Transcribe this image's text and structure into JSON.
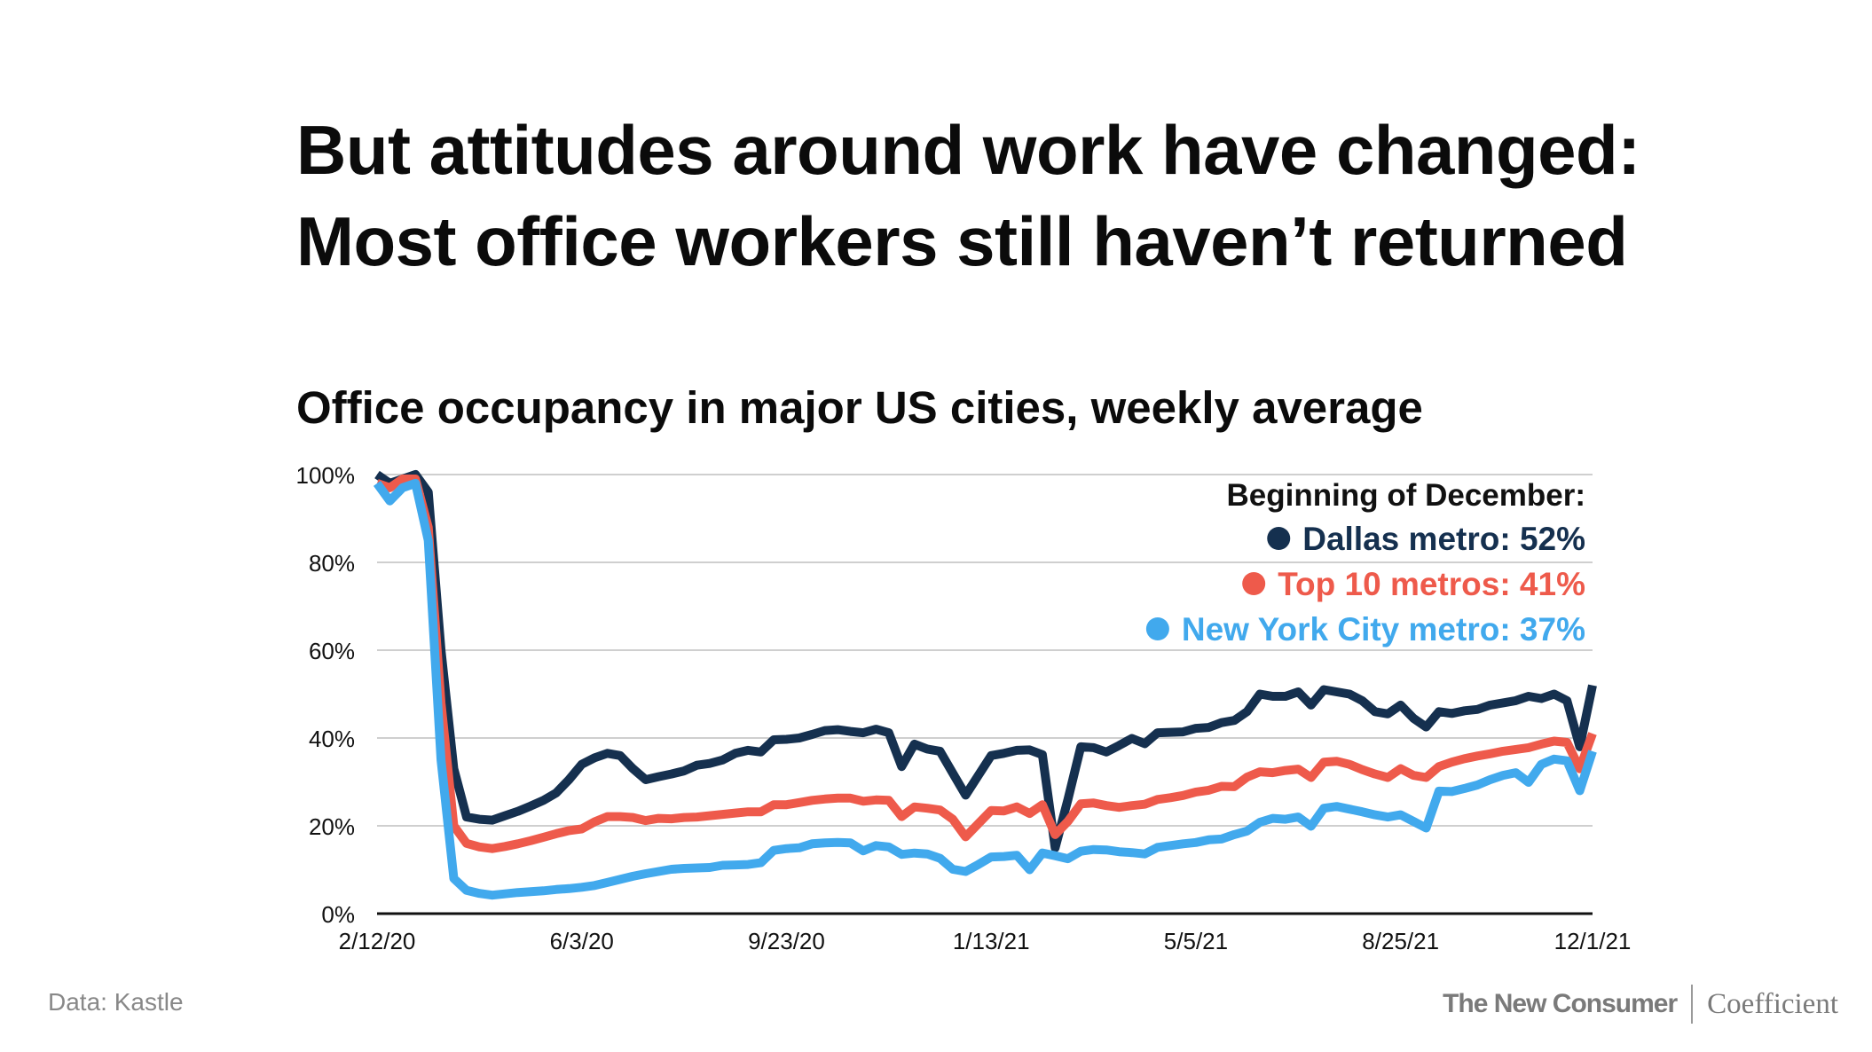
{
  "slide": {
    "title_line1": "But attitudes around work have changed:",
    "title_line2": "Most office workers still haven’t returned",
    "source": "Data: Kastle",
    "brand_primary": "The New Consumer",
    "brand_secondary": "Coefficient"
  },
  "chart_data": {
    "type": "line",
    "title": "Office occupancy in major US cities, weekly average",
    "xlabel": "",
    "ylabel": "",
    "ylim": [
      0,
      100
    ],
    "yticks": [
      "0%",
      "20%",
      "40%",
      "60%",
      "80%",
      "100%"
    ],
    "ytick_values": [
      0,
      20,
      40,
      60,
      80,
      100
    ],
    "xtick_labels": [
      "2/12/20",
      "6/3/20",
      "9/23/20",
      "1/13/21",
      "5/5/21",
      "8/25/21",
      "12/1/21"
    ],
    "xtick_index": [
      0,
      16,
      32,
      48,
      64,
      80,
      95
    ],
    "grid": true,
    "legend": {
      "heading": "Beginning of December:",
      "placement": "top-right",
      "entries": [
        "Dallas metro: 52%",
        "Top 10 metros: 41%",
        "New York City metro: 37%"
      ]
    },
    "series": [
      {
        "name": "Dallas metro",
        "color": "#15304f",
        "values": [
          100,
          98,
          99,
          100,
          96,
          60,
          33,
          22,
          21.5,
          21.3,
          22.3,
          23.3,
          24.5,
          25.8,
          27.5,
          30.5,
          34,
          35.5,
          36.5,
          36,
          33,
          30.5,
          31.2,
          31.8,
          32.5,
          33.8,
          34.2,
          35,
          36.5,
          37.2,
          36.8,
          39.6,
          39.7,
          40,
          40.8,
          41.7,
          41.9,
          41.5,
          41.2,
          42,
          41.2,
          33.5,
          38.6,
          37.5,
          37,
          32,
          27,
          31.5,
          36,
          36.5,
          37.2,
          37.3,
          36.2,
          15,
          26,
          38,
          37.8,
          36.8,
          38.3,
          39.9,
          38.7,
          41.2,
          41.3,
          41.4,
          42.2,
          42.4,
          43.5,
          44,
          46,
          50,
          49.5,
          49.5,
          50.5,
          47.5,
          51,
          50.5,
          50,
          48.5,
          46,
          45.5,
          47.5,
          44.5,
          42.5,
          46,
          45.6,
          46.2,
          46.5,
          47.5,
          48,
          48.5,
          49.5,
          49,
          50,
          48.5,
          38,
          52
        ]
      },
      {
        "name": "Top 10 metros",
        "color": "#ee5a4b",
        "values": [
          98,
          97,
          99,
          99,
          88,
          48,
          20,
          16,
          15.2,
          14.8,
          15.3,
          15.9,
          16.6,
          17.4,
          18.2,
          18.9,
          19.3,
          20.9,
          22.1,
          22.1,
          21.9,
          21.2,
          21.7,
          21.6,
          21.9,
          22,
          22.3,
          22.6,
          22.9,
          23.2,
          23.2,
          24.8,
          24.8,
          25.3,
          25.8,
          26.1,
          26.3,
          26.3,
          25.6,
          25.9,
          25.8,
          22.1,
          24.3,
          24,
          23.6,
          21.5,
          17.5,
          20.5,
          23.5,
          23.4,
          24.3,
          22.8,
          24.8,
          18,
          21,
          25,
          25.2,
          24.6,
          24.2,
          24.6,
          24.9,
          26,
          26.4,
          26.9,
          27.7,
          28.1,
          29,
          28.9,
          31.1,
          32.3,
          32.1,
          32.6,
          32.9,
          31,
          34.5,
          34.7,
          34,
          32.8,
          31.8,
          31,
          33,
          31.5,
          31,
          33.5,
          34.5,
          35.3,
          35.9,
          36.4,
          37,
          37.4,
          37.8,
          38.6,
          39.3,
          39,
          33,
          41
        ]
      },
      {
        "name": "New York City metro",
        "color": "#41a9ed",
        "values": [
          98,
          94,
          97,
          98,
          85,
          35,
          8,
          5.3,
          4.6,
          4.2,
          4.5,
          4.8,
          5,
          5.2,
          5.5,
          5.7,
          6,
          6.4,
          7.1,
          7.8,
          8.5,
          9.1,
          9.6,
          10.1,
          10.3,
          10.4,
          10.5,
          11,
          11.1,
          11.2,
          11.6,
          14.4,
          14.8,
          15,
          15.9,
          16.1,
          16.2,
          16.1,
          14.3,
          15.5,
          15.2,
          13.5,
          13.8,
          13.6,
          12.6,
          10.1,
          9.6,
          11.2,
          12.9,
          13,
          13.3,
          10,
          13.8,
          13.2,
          12.5,
          14.2,
          14.6,
          14.5,
          14.1,
          13.9,
          13.6,
          15.1,
          15.5,
          15.9,
          16.2,
          16.8,
          17,
          18,
          18.8,
          20.8,
          21.7,
          21.5,
          22,
          19.9,
          24,
          24.4,
          23.8,
          23.2,
          22.5,
          22,
          22.5,
          21,
          19.5,
          27.9,
          27.8,
          28.5,
          29.3,
          30.5,
          31.5,
          32.1,
          29.9,
          34,
          35.2,
          34.8,
          28,
          37
        ]
      }
    ]
  }
}
